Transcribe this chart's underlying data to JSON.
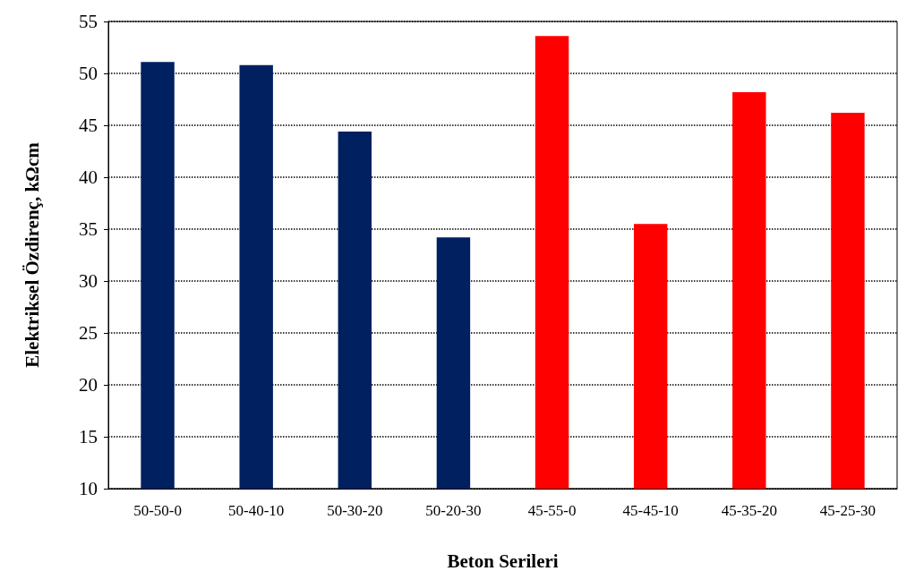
{
  "chart_data": {
    "type": "bar",
    "xlabel": "Beton Serileri",
    "ylabel": "Elektriksel Özdirenç, kΩcm",
    "categories": [
      "50-50-0",
      "50-40-10",
      "50-30-20",
      "50-20-30",
      "45-55-0",
      "45-45-10",
      "45-35-20",
      "45-25-30"
    ],
    "values": [
      51.1,
      50.8,
      44.4,
      34.2,
      53.6,
      35.5,
      48.2,
      46.2
    ],
    "colors": [
      "#002060",
      "#002060",
      "#002060",
      "#002060",
      "#ff0000",
      "#ff0000",
      "#ff0000",
      "#ff0000"
    ],
    "ylim": [
      10,
      55
    ],
    "yticks": [
      10,
      15,
      20,
      25,
      30,
      35,
      40,
      45,
      50,
      55
    ],
    "grid": "y"
  }
}
